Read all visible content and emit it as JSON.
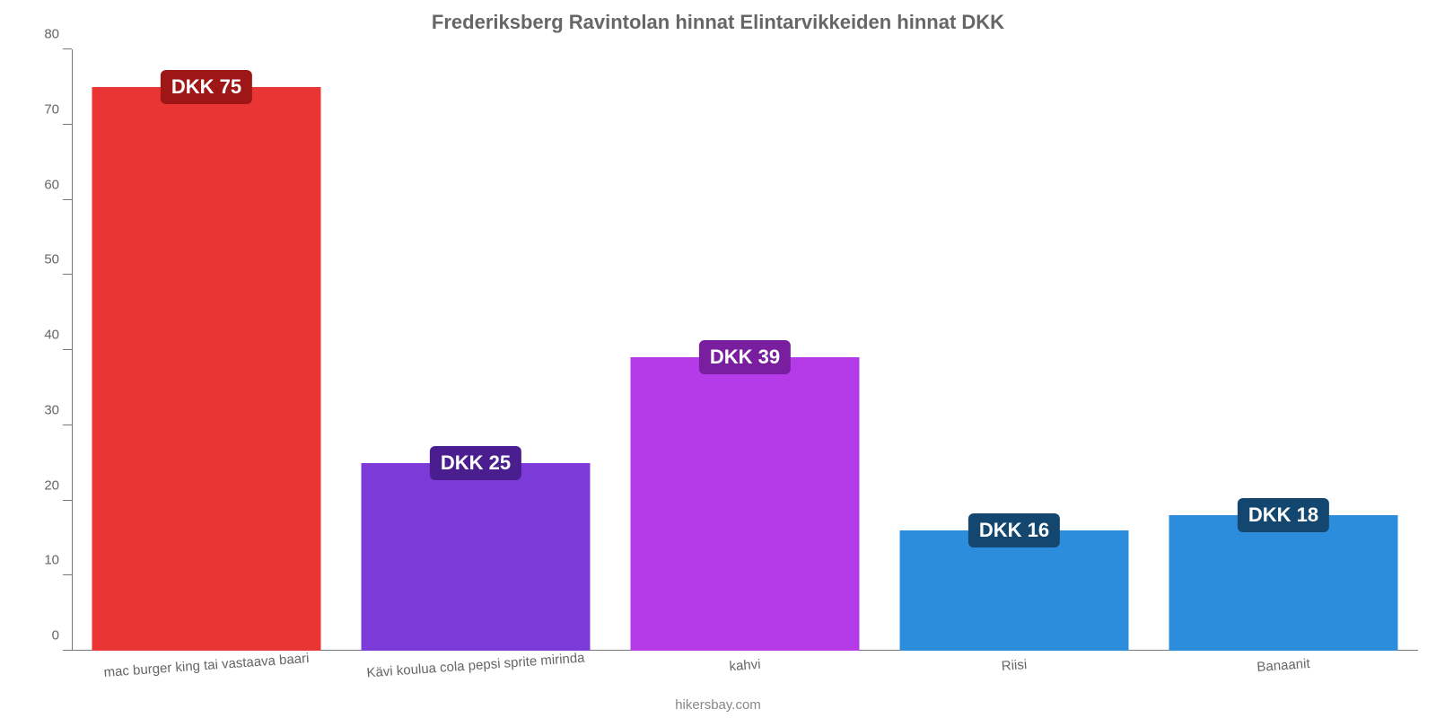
{
  "chart": {
    "type": "bar",
    "title": "Frederiksberg Ravintolan hinnat Elintarvikkeiden hinnat DKK",
    "title_fontsize": 22,
    "title_color": "#666666",
    "background_color": "#ffffff",
    "axis_color": "#777777",
    "tick_label_color": "#666666",
    "tick_label_fontsize": 15,
    "ylim": [
      0,
      80
    ],
    "ytick_step": 10,
    "yticks": [
      0,
      10,
      20,
      30,
      40,
      50,
      60,
      70,
      80
    ],
    "bar_width_pct": 85,
    "value_prefix": "DKK ",
    "value_badge_text_color": "#ffffff",
    "value_badge_fontsize": 22,
    "value_badge_radius": 6,
    "categories": [
      "mac burger king tai vastaava baari",
      "Kävi koulua cola pepsi sprite mirinda",
      "kahvi",
      "Riisi",
      "Banaanit"
    ],
    "values": [
      75,
      25,
      39,
      16,
      18
    ],
    "value_labels": [
      "DKK 75",
      "DKK 25",
      "DKK 39",
      "DKK 16",
      "DKK 18"
    ],
    "bar_colors": [
      "#ea3535",
      "#7c3bd9",
      "#b63be8",
      "#2b8ddb",
      "#2b8ddb"
    ],
    "badge_colors": [
      "#9e1616",
      "#4a1e8f",
      "#7a1ea0",
      "#13476f",
      "#13476f"
    ],
    "footer": "hikersbay.com",
    "footer_color": "#888888",
    "footer_fontsize": 15
  }
}
